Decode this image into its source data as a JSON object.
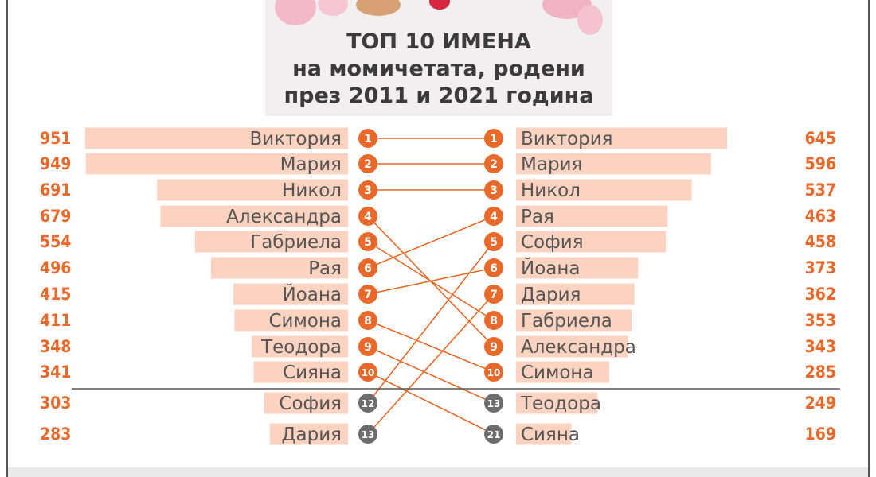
{
  "colors": {
    "bar": "#fbd3c0",
    "accent": "#e8692a",
    "gray_rank": "#6d6d6d",
    "name_text": "#555555",
    "divider": "#555555"
  },
  "title": {
    "line1": "ТОП 10 ИМЕНА",
    "line2": "на момичетата, родени",
    "line3": "през 2011 и 2021 година"
  },
  "chart_data": {
    "type": "bar",
    "subtype": "butterfly-bump",
    "orientation": "horizontal",
    "series": [
      {
        "name": "2011",
        "rows": [
          {
            "name": "Виктория",
            "value": 951,
            "rank": 1
          },
          {
            "name": "Мария",
            "value": 949,
            "rank": 2
          },
          {
            "name": "Никол",
            "value": 691,
            "rank": 3
          },
          {
            "name": "Александра",
            "value": 679,
            "rank": 4
          },
          {
            "name": "Габриела",
            "value": 554,
            "rank": 5
          },
          {
            "name": "Рая",
            "value": 496,
            "rank": 6
          },
          {
            "name": "Йоана",
            "value": 415,
            "rank": 7
          },
          {
            "name": "Симона",
            "value": 411,
            "rank": 8
          },
          {
            "name": "Теодора",
            "value": 348,
            "rank": 9
          },
          {
            "name": "Сияна",
            "value": 341,
            "rank": 10
          },
          {
            "name": "София",
            "value": 303,
            "rank": 12
          },
          {
            "name": "Дария",
            "value": 283,
            "rank": 13
          }
        ]
      },
      {
        "name": "2021",
        "rows": [
          {
            "name": "Виктория",
            "value": 645,
            "rank": 1
          },
          {
            "name": "Мария",
            "value": 596,
            "rank": 2
          },
          {
            "name": "Никол",
            "value": 537,
            "rank": 3
          },
          {
            "name": "Рая",
            "value": 463,
            "rank": 4
          },
          {
            "name": "София",
            "value": 458,
            "rank": 5
          },
          {
            "name": "Йоана",
            "value": 373,
            "rank": 6
          },
          {
            "name": "Дария",
            "value": 362,
            "rank": 7
          },
          {
            "name": "Габриела",
            "value": 353,
            "rank": 8
          },
          {
            "name": "Александра",
            "value": 343,
            "rank": 9
          },
          {
            "name": "Симона",
            "value": 285,
            "rank": 10
          },
          {
            "name": "Теодора",
            "value": 249,
            "rank": 13
          },
          {
            "name": "Сияна",
            "value": 169,
            "rank": 21
          }
        ]
      }
    ],
    "links": [
      {
        "name": "Виктория",
        "from_rank": 1,
        "to_rank": 1
      },
      {
        "name": "Мария",
        "from_rank": 2,
        "to_rank": 2
      },
      {
        "name": "Никол",
        "from_rank": 3,
        "to_rank": 3
      },
      {
        "name": "Александра",
        "from_rank": 4,
        "to_rank": 9
      },
      {
        "name": "Габриела",
        "from_rank": 5,
        "to_rank": 8
      },
      {
        "name": "Рая",
        "from_rank": 6,
        "to_rank": 4
      },
      {
        "name": "Йоана",
        "from_rank": 7,
        "to_rank": 6
      },
      {
        "name": "Симона",
        "from_rank": 8,
        "to_rank": 10
      },
      {
        "name": "Теодора",
        "from_rank": 9,
        "to_rank": 13
      },
      {
        "name": "Сияна",
        "from_rank": 10,
        "to_rank": 21
      },
      {
        "name": "София",
        "from_rank": 12,
        "to_rank": 5
      },
      {
        "name": "Дария",
        "from_rank": 13,
        "to_rank": 7
      }
    ],
    "top_n": 10,
    "xlim": [
      0,
      951
    ],
    "title": "ТОП 10 ИМЕНА на момичетата, родени през 2011 и 2021 година",
    "xlabel": "",
    "ylabel": "",
    "grid": false,
    "legend": "none"
  }
}
